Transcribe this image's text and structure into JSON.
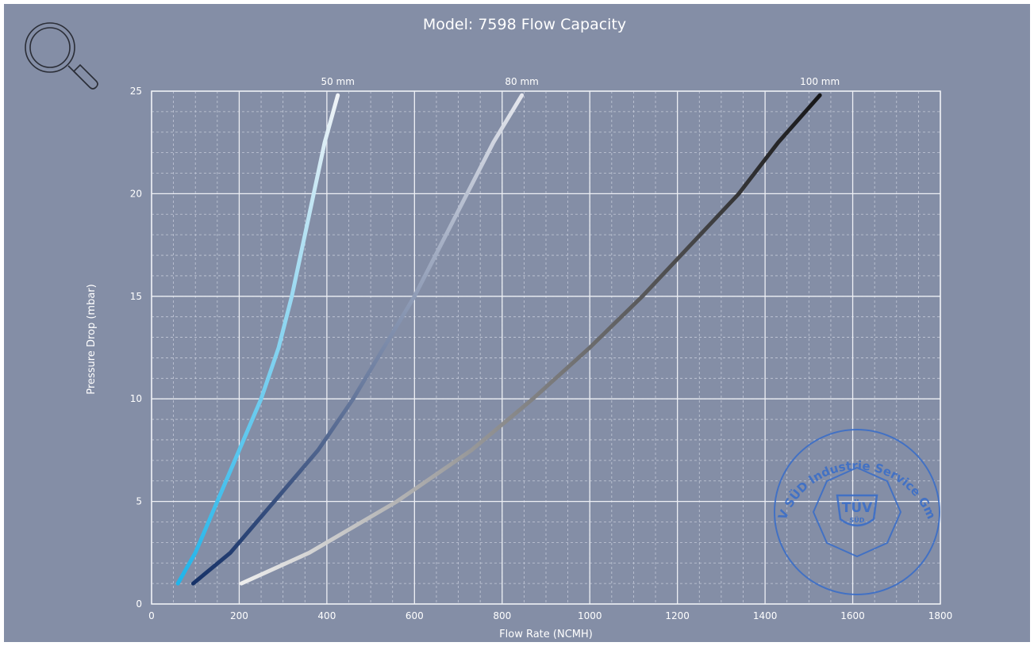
{
  "chart_data": {
    "type": "line",
    "title": "Model: 7598 Flow Capacity",
    "xlabel": "Flow Rate (NCMH)",
    "ylabel": "Pressure Drop (mbar)",
    "xlim": [
      0,
      1800
    ],
    "ylim": [
      0,
      25
    ],
    "xticks": [
      0,
      200,
      400,
      600,
      800,
      1000,
      1200,
      1400,
      1600,
      1800
    ],
    "yticks": [
      0,
      5,
      10,
      15,
      20,
      25
    ],
    "grid": true,
    "series": [
      {
        "name": "50 mm",
        "color_start": "#1eb4ea",
        "color_end": "#f2f4f7",
        "points": [
          [
            60,
            1
          ],
          [
            100,
            2.5
          ],
          [
            150,
            5
          ],
          [
            200,
            7.5
          ],
          [
            250,
            10
          ],
          [
            290,
            12.5
          ],
          [
            320,
            15
          ],
          [
            345,
            17.5
          ],
          [
            370,
            20
          ],
          [
            395,
            22.5
          ],
          [
            425,
            24.8
          ]
        ]
      },
      {
        "name": "80 mm",
        "color_start": "#143067",
        "color_end": "#e6e8ee",
        "points": [
          [
            95,
            1
          ],
          [
            180,
            2.5
          ],
          [
            280,
            5
          ],
          [
            380,
            7.5
          ],
          [
            460,
            10
          ],
          [
            530,
            12.5
          ],
          [
            600,
            15
          ],
          [
            660,
            17.5
          ],
          [
            720,
            20
          ],
          [
            780,
            22.5
          ],
          [
            845,
            24.8
          ]
        ]
      },
      {
        "name": "100 mm",
        "color_start": "#f0f0f0",
        "color_end": "#161618",
        "points": [
          [
            205,
            1
          ],
          [
            360,
            2.5
          ],
          [
            560,
            5
          ],
          [
            730,
            7.5
          ],
          [
            870,
            10
          ],
          [
            1000,
            12.5
          ],
          [
            1120,
            15
          ],
          [
            1230,
            17.5
          ],
          [
            1340,
            20
          ],
          [
            1430,
            22.5
          ],
          [
            1525,
            24.8
          ]
        ]
      }
    ]
  },
  "icons": {
    "zoom": "magnifier-icon"
  },
  "stamp": {
    "text": "TÜV SÜD Industrie Service GmbH",
    "logo": "TÜV",
    "logo_sub": "SÜD",
    "color": "#3b6ec8"
  }
}
